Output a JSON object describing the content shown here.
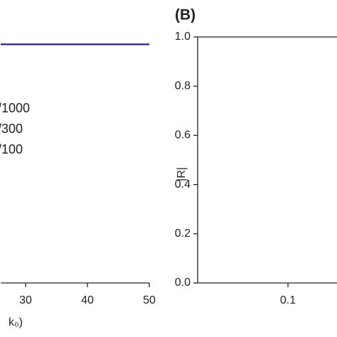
{
  "chart_data": [
    {
      "type": "line",
      "x_label": "k₀)",
      "x": [
        26,
        50
      ],
      "series": [
        {
          "name": "/1000",
          "color": "#000000",
          "values": [
            0.97,
            0.97
          ]
        },
        {
          "name": "/300",
          "color": "#d01010",
          "values": [
            0.97,
            0.97
          ]
        },
        {
          "name": "/100",
          "color": "#2020b0",
          "values": [
            0.97,
            0.97
          ]
        }
      ],
      "xlim": [
        26,
        50
      ],
      "xticks": [
        30,
        40,
        50
      ],
      "ylim": [
        0,
        1
      ]
    },
    {
      "type": "line",
      "title": "(B)",
      "y_label": "|R|",
      "log_x": true,
      "xlim": [
        0.05,
        0.5
      ],
      "xticks": [
        0.1
      ],
      "ylim": [
        0,
        1
      ],
      "yticks": [
        {
          "value": 0,
          "label": "0.0"
        },
        0.2,
        0.4,
        0.6,
        0.8,
        {
          "value": 1,
          "label": "1.0"
        }
      ]
    }
  ]
}
